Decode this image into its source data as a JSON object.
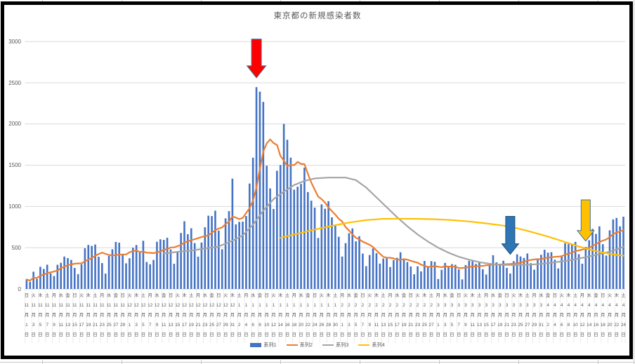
{
  "chart_data": {
    "type": "combo",
    "title": "東京都の新規感染者数",
    "background": "#FFFFFF",
    "ylim": [
      0,
      3000
    ],
    "y_ticks": [
      0,
      500,
      1000,
      1500,
      2000,
      2500,
      3000
    ],
    "grid": "horizontal",
    "legend_position": "bottom",
    "x_axis": {
      "label_interval_days": 2,
      "month_suffix": "月",
      "day_suffix": "日",
      "weekdays": "日火木土月水金日火木土月水金日火木土月水金日火木土月水金日火木土月水金日火木土月水金日火木土月水金日火木土月水金日火木土月水金日火木土月水金日火木土月水金日火木土月水金日火木土",
      "months": [
        "11",
        "11",
        "11",
        "11",
        "11",
        "11",
        "11",
        "11",
        "11",
        "11",
        "11",
        "11",
        "11",
        "11",
        "11",
        "12",
        "12",
        "12",
        "12",
        "12",
        "12",
        "12",
        "12",
        "12",
        "12",
        "12",
        "12",
        "12",
        "12",
        "12",
        "12",
        "1",
        "1",
        "1",
        "1",
        "1",
        "1",
        "1",
        "1",
        "1",
        "1",
        "1",
        "1",
        "1",
        "1",
        "1",
        "2",
        "2",
        "2",
        "2",
        "2",
        "2",
        "2",
        "2",
        "2",
        "2",
        "2",
        "2",
        "2",
        "2",
        "3",
        "3",
        "3",
        "3",
        "3",
        "3",
        "3",
        "3",
        "3",
        "3",
        "3",
        "3",
        "3",
        "3",
        "3",
        "3",
        "4",
        "4",
        "4",
        "4",
        "4",
        "4",
        "4",
        "4",
        "4",
        "4",
        "4",
        "4"
      ],
      "days": [
        1,
        3,
        5,
        7,
        9,
        11,
        13,
        15,
        17,
        19,
        21,
        23,
        25,
        27,
        29,
        1,
        3,
        5,
        7,
        9,
        11,
        13,
        15,
        17,
        19,
        21,
        23,
        25,
        27,
        29,
        31,
        2,
        4,
        6,
        8,
        10,
        12,
        14,
        16,
        18,
        20,
        22,
        24,
        26,
        28,
        30,
        1,
        3,
        5,
        7,
        9,
        11,
        13,
        15,
        17,
        19,
        21,
        23,
        25,
        27,
        1,
        3,
        5,
        7,
        9,
        11,
        13,
        15,
        17,
        19,
        21,
        23,
        25,
        27,
        29,
        31,
        2,
        4,
        6,
        8,
        10,
        12,
        14,
        16,
        18,
        20,
        22,
        24
      ]
    },
    "series": [
      {
        "name": "系列1",
        "type": "bar",
        "color": "#4472C4",
        "values": [
          116,
          87,
          209,
          122,
          269,
          242,
          294,
          189,
          157,
          293,
          317,
          393,
          374,
          352,
          255,
          180,
          298,
          493,
          534,
          522,
          539,
          391,
          314,
          186,
          401,
          481,
          570,
          561,
          418,
          311,
          372,
          500,
          533,
          449,
          584,
          327,
          299,
          352,
          572,
          602,
          595,
          621,
          480,
          305,
          460,
          678,
          821,
          664,
          736,
          556,
          392,
          563,
          748,
          888,
          884,
          949,
          708,
          481,
          856,
          944,
          1337,
          783,
          814,
          816,
          884,
          1278,
          1591,
          2447,
          2392,
          2268,
          1494,
          1219,
          970,
          1433,
          1502,
          2001,
          1809,
          1592,
          1204,
          1240,
          1274,
          1471,
          1175,
          1070,
          986,
          618,
          1026,
          973,
          1064,
          868,
          769,
          633,
          393,
          556,
          676,
          734,
          577,
          639,
          429,
          276,
          412,
          491,
          434,
          307,
          369,
          371,
          266,
          350,
          378,
          445,
          353,
          327,
          272,
          178,
          275,
          213,
          340,
          270,
          337,
          329,
          121,
          232,
          316,
          279,
          301,
          293,
          237,
          116,
          290,
          340,
          335,
          304,
          330,
          239,
          175,
          300,
          409,
          323,
          303,
          342,
          256,
          187,
          337,
          420,
          394,
          376,
          430,
          313,
          234,
          364,
          414,
          475,
          440,
          446,
          355,
          249,
          399,
          555,
          545,
          537,
          570,
          421,
          306,
          510,
          591,
          729,
          667,
          759,
          543,
          405,
          711,
          843,
          861,
          759,
          876
        ]
      },
      {
        "name": "系列2",
        "type": "line",
        "color": "#ED7D31",
        "derived": "7-day moving average of 系列1"
      },
      {
        "name": "系列3",
        "type": "line",
        "color": "#A5A5A5",
        "points": [
          [
            40,
            430
          ],
          [
            44,
            450
          ],
          [
            48,
            465
          ],
          [
            52,
            490
          ],
          [
            56,
            515
          ],
          [
            60,
            585
          ],
          [
            63,
            650
          ],
          [
            66,
            780
          ],
          [
            69,
            950
          ],
          [
            72,
            1090
          ],
          [
            75,
            1180
          ],
          [
            78,
            1260
          ],
          [
            81,
            1310
          ],
          [
            84,
            1340
          ],
          [
            88,
            1350
          ],
          [
            93,
            1350
          ],
          [
            96,
            1320
          ],
          [
            99,
            1230
          ],
          [
            102,
            1110
          ],
          [
            105,
            990
          ],
          [
            108,
            870
          ],
          [
            111,
            760
          ],
          [
            114,
            660
          ],
          [
            117,
            575
          ],
          [
            120,
            500
          ],
          [
            123,
            440
          ],
          [
            126,
            390
          ],
          [
            129,
            355
          ],
          [
            132,
            325
          ],
          [
            135,
            305
          ],
          [
            139,
            292
          ],
          [
            143,
            290
          ],
          [
            147,
            295
          ],
          [
            151,
            308
          ],
          [
            155,
            328
          ],
          [
            159,
            352
          ],
          [
            163,
            385
          ],
          [
            167,
            420
          ],
          [
            171,
            465
          ],
          [
            174,
            510
          ]
        ]
      },
      {
        "name": "系列4",
        "type": "line",
        "color": "#FFC000",
        "points": [
          [
            74,
            620
          ],
          [
            79,
            670
          ],
          [
            84,
            720
          ],
          [
            89,
            765
          ],
          [
            94,
            805
          ],
          [
            99,
            835
          ],
          [
            104,
            850
          ],
          [
            109,
            852
          ],
          [
            114,
            850
          ],
          [
            119,
            845
          ],
          [
            124,
            835
          ],
          [
            129,
            818
          ],
          [
            134,
            795
          ],
          [
            139,
            768
          ],
          [
            143,
            735
          ],
          [
            146,
            705
          ],
          [
            149,
            670
          ],
          [
            152,
            635
          ],
          [
            155,
            595
          ],
          [
            158,
            555
          ],
          [
            161,
            515
          ],
          [
            164,
            480
          ],
          [
            167,
            450
          ],
          [
            170,
            425
          ],
          [
            172,
            412
          ],
          [
            174,
            404
          ]
        ]
      }
    ],
    "annotations": [
      {
        "name": "red-arrow",
        "shape": "down-arrow",
        "fill": "#FF0000",
        "outline": "#41719C",
        "index": 67,
        "value_top": 3030,
        "value_tip": 2560,
        "size": "large"
      },
      {
        "name": "blue-arrow",
        "shape": "down-arrow",
        "fill": "#2E75B6",
        "outline": "#1F4E79",
        "index": 141,
        "value_top": 880,
        "value_tip": 420,
        "size": "medium"
      },
      {
        "name": "yellow-arrow",
        "shape": "down-arrow",
        "fill": "#FFC000",
        "outline": "#41719C",
        "index": 163,
        "value_top": 1080,
        "value_tip": 580,
        "size": "medium"
      }
    ],
    "legend": [
      "系列1",
      "系列2",
      "系列3",
      "系列4"
    ],
    "colors": {
      "grid": "#D9D9D9",
      "axis_text": "#595959",
      "title_text": "#595959"
    }
  }
}
